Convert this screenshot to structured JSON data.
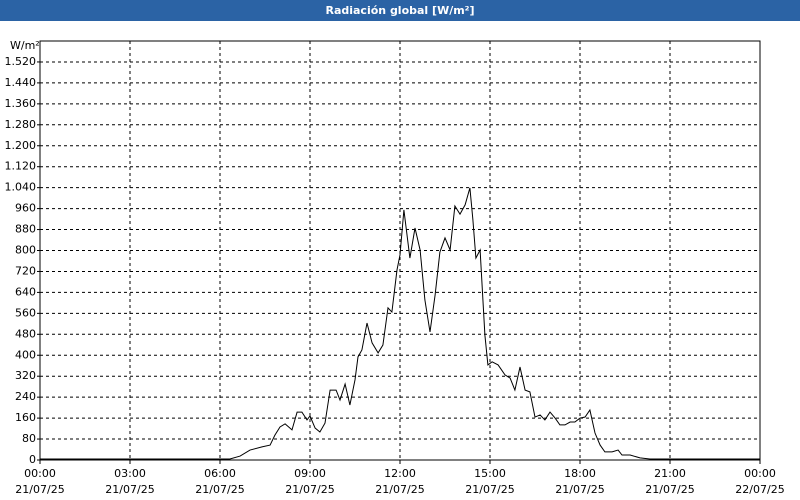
{
  "chart_data": {
    "type": "line",
    "title": "Radiación global [W/m²]",
    "y_label": "W/m²",
    "x": [
      0,
      6.33,
      6.67,
      7.0,
      7.4,
      7.67,
      7.83,
      8.0,
      8.17,
      8.4,
      8.57,
      8.73,
      8.9,
      9.0,
      9.17,
      9.33,
      9.5,
      9.67,
      9.87,
      10.0,
      10.17,
      10.33,
      10.5,
      10.6,
      10.73,
      10.9,
      11.07,
      11.27,
      11.43,
      11.6,
      11.73,
      11.9,
      12.0,
      12.13,
      12.33,
      12.5,
      12.67,
      12.83,
      13.0,
      13.17,
      13.33,
      13.5,
      13.67,
      13.83,
      14.0,
      14.17,
      14.33,
      14.43,
      14.53,
      14.67,
      14.83,
      14.93,
      15.07,
      15.27,
      15.5,
      15.67,
      15.83,
      16.0,
      16.17,
      16.33,
      16.5,
      16.67,
      16.83,
      17.0,
      17.17,
      17.33,
      17.5,
      17.67,
      17.83,
      18.0,
      18.17,
      18.33,
      18.5,
      18.67,
      18.83,
      19.07,
      19.27,
      19.4,
      19.67,
      20.0,
      20.33,
      24.0
    ],
    "values": [
      4,
      4,
      15,
      38,
      50,
      57,
      95,
      126,
      138,
      115,
      183,
      183,
      153,
      168,
      122,
      107,
      141,
      267,
      267,
      229,
      290,
      210,
      306,
      394,
      420,
      523,
      447,
      409,
      439,
      581,
      565,
      726,
      783,
      955,
      771,
      886,
      802,
      611,
      489,
      630,
      794,
      848,
      802,
      970,
      939,
      974,
      1039,
      917,
      771,
      802,
      477,
      363,
      375,
      363,
      325,
      313,
      267,
      355,
      267,
      260,
      164,
      172,
      153,
      183,
      160,
      134,
      134,
      145,
      145,
      160,
      164,
      191,
      103,
      57,
      31,
      31,
      38,
      19,
      19,
      8,
      4,
      4
    ],
    "color": "#000000",
    "xlim": [
      0,
      24
    ],
    "xticks": [
      {
        "value": 0,
        "label": "00:00",
        "date": "21/07/25"
      },
      {
        "value": 3,
        "label": "03:00",
        "date": "21/07/25"
      },
      {
        "value": 6,
        "label": "06:00",
        "date": "21/07/25"
      },
      {
        "value": 9,
        "label": "09:00",
        "date": "21/07/25"
      },
      {
        "value": 12,
        "label": "12:00",
        "date": "21/07/25"
      },
      {
        "value": 15,
        "label": "15:00",
        "date": "21/07/25"
      },
      {
        "value": 18,
        "label": "18:00",
        "date": "21/07/25"
      },
      {
        "value": 21,
        "label": "21:00",
        "date": "21/07/25"
      },
      {
        "value": 24,
        "label": "00:00",
        "date": "22/07/25"
      }
    ],
    "ylim": [
      0,
      1600
    ],
    "yticks": [
      0,
      80,
      160,
      240,
      320,
      400,
      480,
      560,
      640,
      720,
      800,
      880,
      960,
      {
        "value": 1040,
        "label": "1.040"
      },
      {
        "value": 1120,
        "label": "1.120"
      },
      {
        "value": 1200,
        "label": "1.200"
      },
      {
        "value": 1280,
        "label": "1.280"
      },
      {
        "value": 1360,
        "label": "1.360"
      },
      {
        "value": 1440,
        "label": "1.440"
      },
      {
        "value": 1520,
        "label": "1.520"
      }
    ],
    "grid": true
  }
}
